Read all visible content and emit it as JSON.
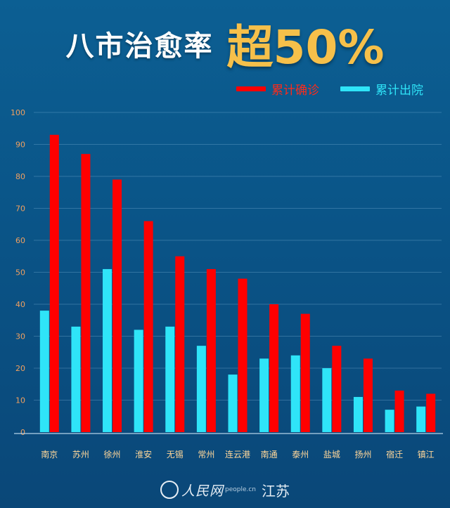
{
  "header": {
    "title": "八市治愈率",
    "accent": "超50%"
  },
  "colors": {
    "confirmed": "#ff0000",
    "recovered": "#2fe4f8",
    "accent": "#f6c04a",
    "tick_label": "#f0a060",
    "category_label": "#ffd79a"
  },
  "chart_data": {
    "type": "bar",
    "categories": [
      "南京",
      "苏州",
      "徐州",
      "淮安",
      "无锡",
      "常州",
      "连云港",
      "南通",
      "泰州",
      "盐城",
      "扬州",
      "宿迁",
      "镇江"
    ],
    "series": [
      {
        "name": "累计确诊",
        "values": [
          93,
          87,
          79,
          66,
          55,
          51,
          48,
          40,
          37,
          27,
          23,
          13,
          12
        ]
      },
      {
        "name": "累计出院",
        "values": [
          38,
          33,
          51,
          32,
          33,
          27,
          18,
          23,
          24,
          20,
          11,
          7,
          8
        ]
      }
    ],
    "yticks": [
      "0",
      "10",
      "20",
      "30",
      "40",
      "50",
      "60",
      "70",
      "80",
      "90",
      "100"
    ],
    "ylim": [
      0,
      100
    ],
    "grid": true,
    "legend_position": "top-right"
  },
  "footer": {
    "brand": "人民网",
    "brand_sub": "people.cn",
    "region": "江苏"
  }
}
